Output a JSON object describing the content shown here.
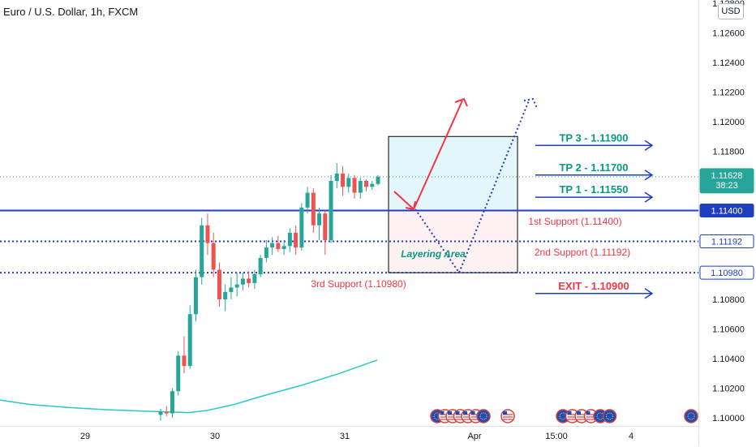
{
  "header": {
    "symbol": "Euro / U.S. Dollar, 1h, FXCM",
    "currency": "USD"
  },
  "colors": {
    "up": "#26a69a",
    "down": "#ef5350",
    "blue": "#1e3fbf",
    "teal": "#089981",
    "red": "#f23645",
    "ma": "#2ec7c9",
    "box_upper": "#e3f6f9",
    "box_lower": "#fdf1f1"
  },
  "chart_data": {
    "type": "candlestick",
    "price_axis_ticks": [
      "1.12800",
      "1.12600",
      "1.12400",
      "1.12200",
      "1.12000",
      "1.11800",
      "1.11600",
      "1.11400",
      "1.11200",
      "1.11000",
      "1.10800",
      "1.10600",
      "1.10400",
      "1.10200",
      "1.10000"
    ],
    "time_axis_ticks": [
      "29",
      "30",
      "31",
      "Apr",
      "15:00",
      "4"
    ],
    "last_price": {
      "value": "1.11628",
      "countdown": "38:23"
    },
    "price_labels": [
      "1.11400",
      "1.11192",
      "1.10980"
    ],
    "levels": [
      {
        "name": "1st Support",
        "price": 1.114,
        "label": "1st Support (1.11400)",
        "style": "solid"
      },
      {
        "name": "2nd Support",
        "price": 1.11192,
        "label": "2nd Support (1.11192)",
        "style": "dotted"
      },
      {
        "name": "3rd Support",
        "price": 1.1098,
        "label": "3rd Support (1.10980)",
        "style": "dotted"
      }
    ],
    "targets": [
      {
        "label": "TP 3 - 1.11900",
        "price": 1.119
      },
      {
        "label": "TP 2 - 1.11700",
        "price": 1.117
      },
      {
        "label": "TP 1 - 1.11550",
        "price": 1.1155
      },
      {
        "label": "EXIT - 1.10900",
        "price": 1.109
      }
    ],
    "zone_label": "Layering Area",
    "candles": [
      [
        1.1002,
        1.1006,
        1.0998,
        1.1004
      ],
      [
        1.1004,
        1.1008,
        1.1001,
        1.1003
      ],
      [
        1.1003,
        1.102,
        1.1,
        1.1018
      ],
      [
        1.1018,
        1.1045,
        1.1015,
        1.1042
      ],
      [
        1.1042,
        1.1055,
        1.103,
        1.1035
      ],
      [
        1.1035,
        1.1076,
        1.1033,
        1.107
      ],
      [
        1.107,
        1.11,
        1.1065,
        1.1095
      ],
      [
        1.1095,
        1.1135,
        1.109,
        1.113
      ],
      [
        1.113,
        1.1138,
        1.111,
        1.1118
      ],
      [
        1.1118,
        1.1125,
        1.1095,
        1.11
      ],
      [
        1.11,
        1.1105,
        1.1075,
        1.108
      ],
      [
        1.108,
        1.109,
        1.1072,
        1.1085
      ],
      [
        1.1085,
        1.1095,
        1.108,
        1.1088
      ],
      [
        1.1088,
        1.1098,
        1.1082,
        1.109
      ],
      [
        1.109,
        1.1098,
        1.1086,
        1.1094
      ],
      [
        1.1094,
        1.1099,
        1.1088,
        1.1091
      ],
      [
        1.1091,
        1.11,
        1.1087,
        1.1097
      ],
      [
        1.1097,
        1.111,
        1.1095,
        1.1108
      ],
      [
        1.1108,
        1.112,
        1.1105,
        1.1115
      ],
      [
        1.1115,
        1.1122,
        1.111,
        1.1118
      ],
      [
        1.1118,
        1.1123,
        1.1112,
        1.1114
      ],
      [
        1.1114,
        1.112,
        1.111,
        1.1116
      ],
      [
        1.1116,
        1.1128,
        1.1112,
        1.1125
      ],
      [
        1.1125,
        1.113,
        1.111,
        1.1115
      ],
      [
        1.1115,
        1.1145,
        1.1113,
        1.1142
      ],
      [
        1.1142,
        1.1156,
        1.1138,
        1.1152
      ],
      [
        1.1152,
        1.1155,
        1.1125,
        1.113
      ],
      [
        1.113,
        1.1142,
        1.112,
        1.1138
      ],
      [
        1.1138,
        1.114,
        1.111,
        1.112
      ],
      [
        1.112,
        1.1164,
        1.1118,
        1.116
      ],
      [
        1.116,
        1.1172,
        1.1155,
        1.1165
      ],
      [
        1.1165,
        1.117,
        1.115,
        1.1156
      ],
      [
        1.1156,
        1.1165,
        1.1152,
        1.1162
      ],
      [
        1.1162,
        1.1164,
        1.1148,
        1.1152
      ],
      [
        1.1152,
        1.1162,
        1.1148,
        1.116
      ],
      [
        1.116,
        1.1161,
        1.1153,
        1.1156
      ],
      [
        1.1156,
        1.116,
        1.1154,
        1.1158
      ],
      [
        1.1158,
        1.1164,
        1.1157,
        1.11628
      ]
    ],
    "moving_average": {
      "x": [
        0,
        0.08,
        0.18,
        0.28,
        0.38,
        0.45,
        0.5,
        0.55,
        0.62,
        0.7,
        0.8,
        0.9,
        1.0
      ],
      "y": [
        1.1012,
        1.1009,
        1.1007,
        1.10055,
        1.10045,
        1.1004,
        1.10035,
        1.1005,
        1.1009,
        1.1015,
        1.1022,
        1.103,
        1.1039
      ]
    },
    "event_markers": {
      "group1": [
        "eu",
        "us",
        "us",
        "us",
        "us",
        "us",
        "eu"
      ],
      "single_us": [
        "us"
      ],
      "group2": [
        "eu",
        "us",
        "us",
        "us",
        "eu",
        "eu"
      ],
      "single_eu": [
        "eu"
      ]
    }
  }
}
